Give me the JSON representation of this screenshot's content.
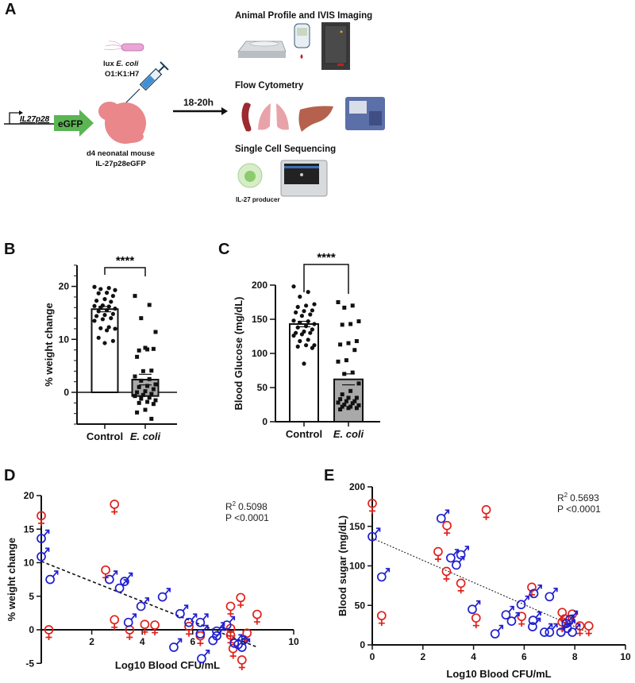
{
  "panel_a": {
    "label": "A",
    "promoter": "IL27p28",
    "reporter": "eGFP",
    "bacteria_line1_prefix": "lux ",
    "bacteria_line1_italic": "E. coli",
    "bacteria_line2": "O1:K1:H7",
    "mouse_line1": "d4 neonatal mouse",
    "mouse_line2": "IL-27p28eGFP",
    "time": "18-20h",
    "section1": "Animal Profile and IVIS Imaging",
    "section2": "Flow Cytometry",
    "section3": "Single Cell Sequencing",
    "cell_label": "IL-27 producer"
  },
  "colors": {
    "female": "#e0201b",
    "male": "#1f1fd0",
    "ecoli_bar": "#a9a9a9"
  },
  "chart_data": [
    {
      "panel": "B",
      "type": "bar",
      "categories": [
        "Control",
        "E. coli"
      ],
      "ylabel": "% weight change",
      "ylim": [
        -6,
        24
      ],
      "yticks": [
        "0",
        "10",
        "20"
      ],
      "significance": "****",
      "means": [
        15.7,
        2.4
      ],
      "sem": [
        0.5,
        1.0
      ],
      "points": [
        [
          19.9,
          19.7,
          19.5,
          19.3,
          18.8,
          18.7,
          18.2,
          17.6,
          17.3,
          17.1,
          16.4,
          16.3,
          16.2,
          16.0,
          15.8,
          15.5,
          15.3,
          14.8,
          14.6,
          14.4,
          14.0,
          13.8,
          13.5,
          12.3,
          12.1,
          12.0,
          11.7,
          10.3,
          9.7,
          9.3
        ],
        [
          18.2,
          16.5,
          14.0,
          11.4,
          8.1,
          7.9,
          8.2,
          8.4,
          6.7,
          4.1,
          4.0,
          3.0,
          2.5,
          2.2,
          1.5,
          1.2,
          1.0,
          0.6,
          0.2,
          0.0,
          -0.3,
          -0.5,
          -0.7,
          -1.0,
          -1.2,
          -1.5,
          -1.8,
          -2.0,
          -2.2,
          -3.3,
          -3.8,
          -5.0
        ]
      ]
    },
    {
      "panel": "C",
      "type": "bar",
      "categories": [
        "Control",
        "E. coli"
      ],
      "ylabel": "Blood Glucose (mg/dL)",
      "ylim": [
        0,
        200
      ],
      "yticks": [
        "0",
        "50",
        "100",
        "150",
        "200"
      ],
      "significance": "****",
      "means": [
        143,
        62
      ],
      "sem": [
        4,
        8
      ],
      "points": [
        [
          198,
          190,
          183,
          172,
          170,
          168,
          163,
          162,
          160,
          157,
          155,
          148,
          147,
          145,
          143,
          140,
          138,
          135,
          132,
          130,
          130,
          128,
          126,
          120,
          118,
          112,
          112,
          110,
          108,
          85
        ],
        [
          175,
          170,
          167,
          147,
          143,
          142,
          118,
          115,
          113,
          105,
          90,
          88,
          72,
          70,
          56,
          45,
          40,
          35,
          35,
          33,
          30,
          30,
          28,
          27,
          25,
          24,
          22,
          22,
          20,
          20,
          18
        ]
      ]
    },
    {
      "panel": "D",
      "type": "scatter",
      "xlabel": "Log10 Blood CFU/mL",
      "ylabel": "% weight change",
      "xlim": [
        0,
        10
      ],
      "ylim": [
        -5,
        20
      ],
      "xticks": [
        "2",
        "4",
        "6",
        "8",
        "10"
      ],
      "yticks": [
        "-5",
        "0",
        "5",
        "10",
        "15",
        "20"
      ],
      "r2_label": "R",
      "r2_value": "0.5098",
      "p_label": "P <0.0001",
      "trend": [
        [
          0,
          10.2
        ],
        [
          8.5,
          -2.5
        ]
      ],
      "female": [
        [
          0,
          17
        ],
        [
          2.9,
          18.7
        ],
        [
          0.3,
          0
        ],
        [
          2.55,
          8.9
        ],
        [
          2.9,
          1.5
        ],
        [
          3.5,
          0
        ],
        [
          4.1,
          0.8
        ],
        [
          4.5,
          0.7
        ],
        [
          5.85,
          0.5
        ],
        [
          6.3,
          -0.9
        ],
        [
          7.5,
          3.5
        ],
        [
          7.5,
          0.2
        ],
        [
          7.5,
          -0.8
        ],
        [
          7.6,
          -2.8
        ],
        [
          7.9,
          4.8
        ],
        [
          7.95,
          -4.5
        ],
        [
          8.15,
          -0.5
        ],
        [
          8.55,
          2.3
        ]
      ],
      "male": [
        [
          0,
          13.6
        ],
        [
          0,
          10.9
        ],
        [
          0.35,
          7.5
        ],
        [
          2.7,
          7.5
        ],
        [
          3.1,
          6.2
        ],
        [
          3.3,
          7.2
        ],
        [
          3.45,
          1.1
        ],
        [
          3.95,
          3.5
        ],
        [
          4.8,
          4.9
        ],
        [
          5.25,
          -2.6
        ],
        [
          5.5,
          2.4
        ],
        [
          5.85,
          1.1
        ],
        [
          6.3,
          1.1
        ],
        [
          6.3,
          -0.6
        ],
        [
          6.35,
          -4.3
        ],
        [
          6.8,
          -1.6
        ],
        [
          6.95,
          -0.2
        ],
        [
          6.95,
          -0.9
        ],
        [
          7.35,
          0.7
        ],
        [
          7.65,
          -2.0
        ],
        [
          7.8,
          -2.2
        ],
        [
          7.95,
          -2.6
        ]
      ]
    },
    {
      "panel": "E",
      "type": "scatter",
      "xlabel": "Log10 Blood CFU/mL",
      "ylabel": "Blood sugar (mg/dL)",
      "xlim": [
        0,
        10
      ],
      "ylim": [
        0,
        200
      ],
      "xticks": [
        "0",
        "2",
        "4",
        "6",
        "8",
        "10"
      ],
      "yticks": [
        "0",
        "50",
        "100",
        "150",
        "200"
      ],
      "r2_label": "R",
      "r2_value": "0.5693",
      "p_label": "P <0.0001",
      "trend": [
        [
          0,
          135
        ],
        [
          8.5,
          16
        ]
      ],
      "female": [
        [
          0,
          179
        ],
        [
          0.37,
          37
        ],
        [
          2.6,
          118
        ],
        [
          2.95,
          151
        ],
        [
          2.93,
          93
        ],
        [
          3.5,
          78
        ],
        [
          4.5,
          171
        ],
        [
          4.1,
          34
        ],
        [
          5.9,
          36
        ],
        [
          6.3,
          73
        ],
        [
          7.5,
          41
        ],
        [
          7.5,
          29
        ],
        [
          7.6,
          33
        ],
        [
          7.9,
          39
        ],
        [
          8.2,
          24
        ],
        [
          8.55,
          24
        ]
      ],
      "male": [
        [
          0,
          137
        ],
        [
          0.37,
          86
        ],
        [
          2.72,
          160
        ],
        [
          3.1,
          110
        ],
        [
          3.32,
          101
        ],
        [
          3.5,
          114
        ],
        [
          3.95,
          45
        ],
        [
          4.85,
          14
        ],
        [
          5.28,
          38
        ],
        [
          5.5,
          30
        ],
        [
          5.88,
          51
        ],
        [
          6.33,
          23
        ],
        [
          6.35,
          31
        ],
        [
          6.38,
          65
        ],
        [
          7.0,
          61
        ],
        [
          6.8,
          16
        ],
        [
          7.0,
          16
        ],
        [
          7.45,
          16
        ],
        [
          7.66,
          27
        ],
        [
          7.8,
          32
        ],
        [
          7.9,
          16
        ],
        [
          7.7,
          21
        ]
      ]
    }
  ]
}
